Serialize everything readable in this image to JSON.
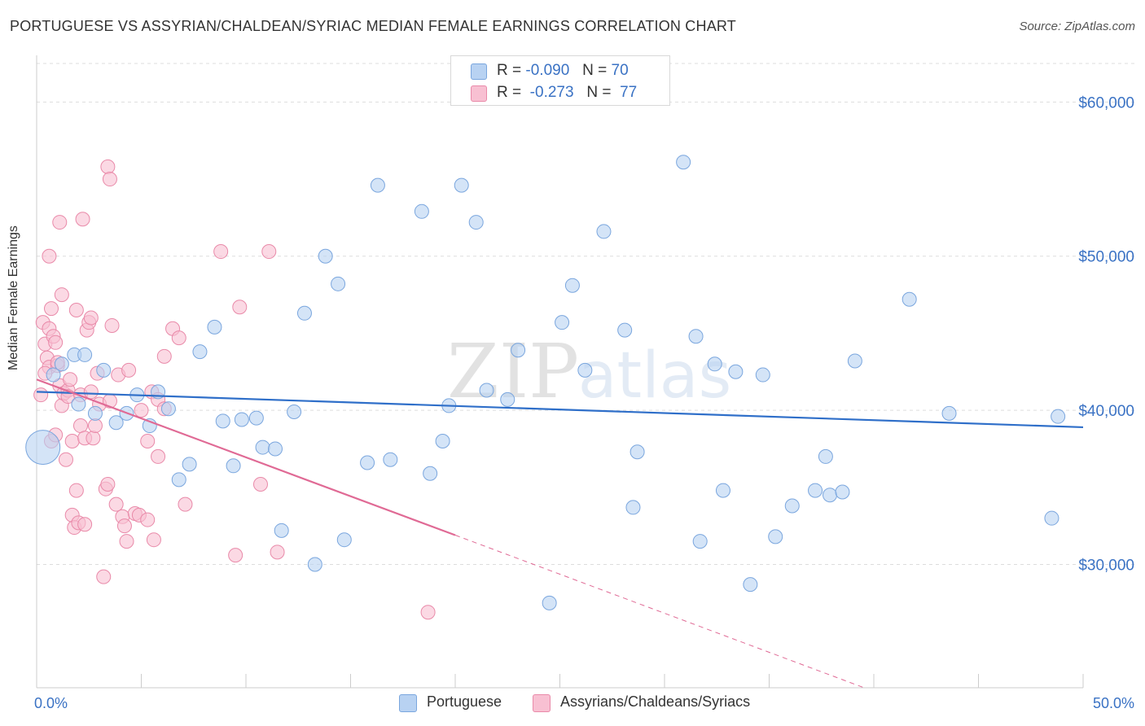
{
  "title": "PORTUGUESE VS ASSYRIAN/CHALDEAN/SYRIAC MEDIAN FEMALE EARNINGS CORRELATION CHART",
  "source": "Source: ZipAtlas.com",
  "watermark": {
    "zip": "ZIP",
    "atlas": "atlas"
  },
  "colors": {
    "blue_fill": "#b8d2f2",
    "blue_stroke": "#7aa6de",
    "blue_line": "#2f6fc9",
    "pink_fill": "#f8c0d2",
    "pink_stroke": "#e98aa9",
    "pink_line": "#e06a95",
    "axis_text": "#3a72c4",
    "grid": "#dddddd"
  },
  "legend_top": {
    "rows": [
      {
        "r_label": "R =",
        "r_value": "-0.090",
        "n_label": "N =",
        "n_value": "70"
      },
      {
        "r_label": "R =",
        "r_value": "-0.273",
        "n_label": "N =",
        "n_value": "77"
      }
    ]
  },
  "bottom_legend": {
    "portuguese": "Portuguese",
    "assyrian": "Assyrians/Chaldeans/Syriacs"
  },
  "chart_data": {
    "type": "scatter",
    "title": "PORTUGUESE VS ASSYRIAN/CHALDEAN/SYRIAC MEDIAN FEMALE EARNINGS CORRELATION CHART",
    "xlabel": "",
    "ylabel": "Median Female Earnings",
    "xlim": [
      0,
      50
    ],
    "ylim": [
      22000,
      62500
    ],
    "x_tick_labels": [
      "0.0%",
      "50.0%"
    ],
    "y_ticks": [
      30000,
      40000,
      50000,
      60000
    ],
    "y_tick_labels": [
      "$30,000",
      "$40,000",
      "$50,000",
      "$60,000"
    ],
    "grid": true,
    "legend_position": "top-center",
    "series": [
      {
        "name": "Portuguese",
        "r": -0.09,
        "n": 70,
        "trend": {
          "x": [
            0,
            50
          ],
          "y": [
            41200,
            38900
          ]
        },
        "points": [
          [
            0.3,
            37600
          ],
          [
            0.8,
            42300
          ],
          [
            1.2,
            43000
          ],
          [
            1.8,
            43600
          ],
          [
            2.3,
            43600
          ],
          [
            2.8,
            39800
          ],
          [
            3.2,
            42600
          ],
          [
            3.8,
            39200
          ],
          [
            4.3,
            39800
          ],
          [
            4.8,
            41000
          ],
          [
            5.4,
            39000
          ],
          [
            5.8,
            41200
          ],
          [
            6.3,
            40100
          ],
          [
            6.8,
            35500
          ],
          [
            7.3,
            36500
          ],
          [
            7.8,
            43800
          ],
          [
            8.5,
            45400
          ],
          [
            8.9,
            39300
          ],
          [
            9.4,
            36400
          ],
          [
            9.8,
            39400
          ],
          [
            10.5,
            39500
          ],
          [
            10.8,
            37600
          ],
          [
            11.4,
            37500
          ],
          [
            11.7,
            32200
          ],
          [
            12.3,
            39900
          ],
          [
            12.8,
            46300
          ],
          [
            13.3,
            30000
          ],
          [
            13.8,
            50000
          ],
          [
            14.4,
            48200
          ],
          [
            14.7,
            31600
          ],
          [
            15.8,
            36600
          ],
          [
            16.3,
            54600
          ],
          [
            16.9,
            36800
          ],
          [
            18.4,
            52900
          ],
          [
            18.8,
            35900
          ],
          [
            19.4,
            38000
          ],
          [
            19.7,
            40300
          ],
          [
            20.3,
            54600
          ],
          [
            21.0,
            52200
          ],
          [
            21.5,
            41300
          ],
          [
            22.5,
            40700
          ],
          [
            23.0,
            43900
          ],
          [
            24.5,
            27500
          ],
          [
            25.1,
            45700
          ],
          [
            25.6,
            48100
          ],
          [
            26.2,
            42600
          ],
          [
            27.1,
            51600
          ],
          [
            28.1,
            45200
          ],
          [
            28.5,
            33700
          ],
          [
            28.7,
            37300
          ],
          [
            30.9,
            56100
          ],
          [
            31.5,
            44800
          ],
          [
            31.7,
            31500
          ],
          [
            32.4,
            43000
          ],
          [
            32.8,
            34800
          ],
          [
            33.4,
            42500
          ],
          [
            34.1,
            28700
          ],
          [
            34.7,
            42300
          ],
          [
            35.3,
            31800
          ],
          [
            36.1,
            33800
          ],
          [
            37.2,
            34800
          ],
          [
            37.7,
            37000
          ],
          [
            37.9,
            34500
          ],
          [
            38.5,
            34700
          ],
          [
            39.1,
            43200
          ],
          [
            41.7,
            47200
          ],
          [
            43.6,
            39800
          ],
          [
            48.5,
            33000
          ],
          [
            48.8,
            39600
          ],
          [
            2.0,
            40400
          ]
        ]
      },
      {
        "name": "Assyrians/Chaldeans/Syriacs",
        "r": -0.273,
        "n": 77,
        "trend": {
          "x": [
            0,
            20
          ],
          "y": [
            42000,
            31900
          ]
        },
        "trend_dashed": {
          "x": [
            20,
            42.5
          ],
          "y": [
            31900,
            20500
          ]
        },
        "points": [
          [
            0.2,
            41000
          ],
          [
            0.3,
            45700
          ],
          [
            0.4,
            44300
          ],
          [
            0.5,
            43400
          ],
          [
            0.6,
            42800
          ],
          [
            0.6,
            45300
          ],
          [
            0.7,
            46600
          ],
          [
            0.6,
            50000
          ],
          [
            0.7,
            38000
          ],
          [
            0.8,
            44800
          ],
          [
            0.9,
            38400
          ],
          [
            0.9,
            44400
          ],
          [
            1.0,
            42900
          ],
          [
            1.1,
            52200
          ],
          [
            1.1,
            41600
          ],
          [
            1.2,
            47500
          ],
          [
            1.2,
            40300
          ],
          [
            1.3,
            41100
          ],
          [
            1.4,
            36800
          ],
          [
            1.5,
            41300
          ],
          [
            1.5,
            40900
          ],
          [
            1.6,
            42000
          ],
          [
            1.7,
            38000
          ],
          [
            1.7,
            33200
          ],
          [
            1.8,
            32400
          ],
          [
            1.9,
            34800
          ],
          [
            1.9,
            46500
          ],
          [
            2.0,
            32700
          ],
          [
            2.1,
            39000
          ],
          [
            2.1,
            41000
          ],
          [
            2.2,
            52400
          ],
          [
            2.3,
            38200
          ],
          [
            2.3,
            32600
          ],
          [
            2.4,
            45200
          ],
          [
            2.5,
            45700
          ],
          [
            2.6,
            41200
          ],
          [
            2.6,
            46000
          ],
          [
            2.7,
            38200
          ],
          [
            2.8,
            39000
          ],
          [
            2.9,
            42400
          ],
          [
            3.0,
            40400
          ],
          [
            3.2,
            29200
          ],
          [
            3.3,
            34900
          ],
          [
            3.4,
            35200
          ],
          [
            3.5,
            40600
          ],
          [
            3.4,
            55800
          ],
          [
            3.5,
            55000
          ],
          [
            3.6,
            45500
          ],
          [
            3.8,
            33900
          ],
          [
            3.9,
            42300
          ],
          [
            4.1,
            33100
          ],
          [
            4.2,
            32500
          ],
          [
            4.3,
            31500
          ],
          [
            4.4,
            42600
          ],
          [
            4.7,
            33300
          ],
          [
            4.9,
            33200
          ],
          [
            5.0,
            40000
          ],
          [
            5.3,
            38000
          ],
          [
            5.3,
            32900
          ],
          [
            5.5,
            41200
          ],
          [
            5.6,
            31600
          ],
          [
            5.8,
            40700
          ],
          [
            5.8,
            37000
          ],
          [
            6.1,
            40100
          ],
          [
            6.1,
            43500
          ],
          [
            6.5,
            45300
          ],
          [
            6.8,
            44700
          ],
          [
            7.1,
            33900
          ],
          [
            8.8,
            50300
          ],
          [
            9.5,
            30600
          ],
          [
            9.7,
            46700
          ],
          [
            10.7,
            35200
          ],
          [
            11.1,
            50300
          ],
          [
            11.5,
            30800
          ],
          [
            18.7,
            26900
          ],
          [
            0.4,
            42400
          ],
          [
            1.0,
            43100
          ]
        ]
      }
    ]
  }
}
